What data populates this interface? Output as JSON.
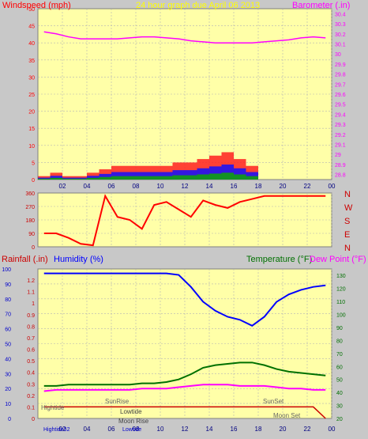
{
  "colors": {
    "page_bg": "#c8c8c8",
    "plot_bg": "#ffffa8",
    "grid": "#b4b4b4",
    "wind": "#ff0000",
    "gust_area": "#ff2020",
    "avg_wind": "#1010ff",
    "lull": "#10a010",
    "barometer": "#ff00ff",
    "direction": "#ff0000",
    "humidity": "#0000ff",
    "temperature": "#007000",
    "dew_point": "#ff00ff",
    "rainfall": "#cc0000",
    "title_yellow": "#ffff00",
    "wind_label_red": "#ff0000",
    "baro_label": "#ff00ff"
  },
  "panel1": {
    "left_label": "Windspeed (mph)",
    "title": "24 hour graph due   April 06 2013",
    "right_label": "Barometer (.in)",
    "left_ticks": [
      "50",
      "45",
      "40",
      "35",
      "30",
      "25",
      "20",
      "15",
      "10",
      "5",
      "0"
    ],
    "right_ticks": [
      "30.4",
      "30.3",
      "30.2",
      "30.1",
      "30",
      "29.9",
      "29.8",
      "29.7",
      "29.6",
      "29.5",
      "29.4",
      "29.3",
      "29.2",
      "29.1",
      "29",
      "28.9",
      "28.8"
    ],
    "x_ticks": [
      "02",
      "04",
      "06",
      "08",
      "10",
      "12",
      "14",
      "16",
      "18",
      "20",
      "22",
      "00"
    ]
  },
  "panel2": {
    "left_ticks": [
      "360",
      "270",
      "180",
      "90",
      "0"
    ],
    "compass": [
      "N",
      "W",
      "S",
      "E",
      "N"
    ]
  },
  "panel3": {
    "rain_label": "Rainfall (.in)",
    "humidity_label": "Humidity (%)",
    "temp_label": "Temperature (°F)",
    "dew_label": "Dew Point (°F)",
    "left_ticks": [
      "100",
      "90",
      "80",
      "70",
      "60",
      "50",
      "40",
      "30",
      "20",
      "10",
      "0"
    ],
    "rain_ticks": [
      "1.2",
      "1.1",
      "1",
      "0.9",
      "0.8",
      "0.7",
      "0.6",
      "0.5",
      "0.4",
      "0.3",
      "0.2",
      "0.1",
      "0"
    ],
    "right_ticks": [
      "130",
      "120",
      "110",
      "100",
      "90",
      "80",
      "70",
      "60",
      "50",
      "40",
      "30",
      "20"
    ],
    "x_ticks": [
      "02",
      "04",
      "06",
      "08",
      "10",
      "12",
      "14",
      "16",
      "18",
      "20",
      "22",
      "00"
    ],
    "annotations": {
      "hightide": "Hightide",
      "sunrise": "SunRise",
      "lowtide": "Lowtide",
      "moonrise": "Moon Rise",
      "sunset": "SunSet",
      "moonset": "Moon Set",
      "bottom_left": "Hightide32",
      "bottom_mid": "Lowtide"
    }
  },
  "chart_data": [
    {
      "type": "line",
      "title": "24 hour graph due   April 06 2013",
      "xlabel": "",
      "ylabel": "Windspeed (mph)",
      "y2label": "Barometer (.in)",
      "x": [
        "01",
        "02",
        "03",
        "04",
        "05",
        "06",
        "07",
        "08",
        "09",
        "10",
        "11",
        "12",
        "13",
        "14",
        "15",
        "16",
        "17",
        "18",
        "19",
        "20",
        "21",
        "22",
        "23",
        "00"
      ],
      "ylim": [
        0,
        50
      ],
      "y2lim": [
        28.75,
        30.45
      ],
      "series": [
        {
          "name": "Windspeed (mph)",
          "axis": "left",
          "values": [
            1,
            2,
            1,
            1,
            2,
            3,
            4,
            4,
            4,
            4,
            4,
            5,
            5,
            6,
            7,
            8,
            6,
            4,
            0,
            0,
            0,
            0,
            0,
            0
          ]
        },
        {
          "name": "Barometer (.in)",
          "axis": "right",
          "values": [
            30.22,
            30.2,
            30.17,
            30.15,
            30.15,
            30.15,
            30.15,
            30.16,
            30.17,
            30.17,
            30.16,
            30.15,
            30.13,
            30.12,
            30.11,
            30.11,
            30.11,
            30.11,
            30.12,
            30.13,
            30.14,
            30.16,
            30.17,
            30.16
          ]
        }
      ]
    },
    {
      "type": "line",
      "title": "",
      "ylabel": "",
      "ylim": [
        0,
        360
      ],
      "x": [
        "01",
        "02",
        "03",
        "04",
        "05",
        "06",
        "07",
        "08",
        "09",
        "10",
        "11",
        "12",
        "13",
        "14",
        "15",
        "16",
        "17",
        "18",
        "19",
        "20",
        "21",
        "22",
        "23",
        "00"
      ],
      "series": [
        {
          "name": "Wind direction",
          "values": [
            90,
            90,
            60,
            20,
            10,
            340,
            200,
            180,
            120,
            280,
            300,
            250,
            200,
            310,
            280,
            260,
            300,
            320,
            340,
            340,
            340,
            340,
            340,
            340
          ]
        }
      ]
    },
    {
      "type": "line",
      "title": "",
      "ylabel": "Humidity (%)",
      "y2label": "Temperature (°F)",
      "ylim": [
        0,
        100
      ],
      "y2lim": [
        20,
        135
      ],
      "x": [
        "01",
        "02",
        "03",
        "04",
        "05",
        "06",
        "07",
        "08",
        "09",
        "10",
        "11",
        "12",
        "13",
        "14",
        "15",
        "16",
        "17",
        "18",
        "19",
        "20",
        "21",
        "22",
        "23",
        "00"
      ],
      "series": [
        {
          "name": "Humidity (%)",
          "axis": "left",
          "values": [
            97,
            97,
            97,
            97,
            97,
            97,
            97,
            97,
            97,
            97,
            97,
            96,
            88,
            78,
            72,
            68,
            66,
            62,
            68,
            78,
            83,
            86,
            88,
            89
          ]
        },
        {
          "name": "Temperature (°F)",
          "axis": "right",
          "values": [
            45,
            45,
            46,
            46,
            46,
            46,
            46,
            46,
            47,
            47,
            48,
            50,
            54,
            59,
            61,
            62,
            63,
            63,
            61,
            58,
            56,
            55,
            54,
            53
          ]
        },
        {
          "name": "Dew Point (°F)",
          "axis": "right",
          "values": [
            41,
            42,
            42,
            42,
            42,
            42,
            42,
            42,
            43,
            43,
            43,
            44,
            45,
            46,
            46,
            46,
            45,
            45,
            45,
            44,
            43,
            43,
            42,
            42
          ]
        },
        {
          "name": "Rainfall (.in)",
          "axis": "rain",
          "values": [
            0.1,
            0.1,
            0.1,
            0.1,
            0.1,
            0.1,
            0.1,
            0.1,
            0.1,
            0.1,
            0.1,
            0.1,
            0.1,
            0.1,
            0.1,
            0.1,
            0.1,
            0.1,
            0.1,
            0.1,
            0.1,
            0.1,
            0.1,
            0
          ]
        }
      ]
    }
  ]
}
